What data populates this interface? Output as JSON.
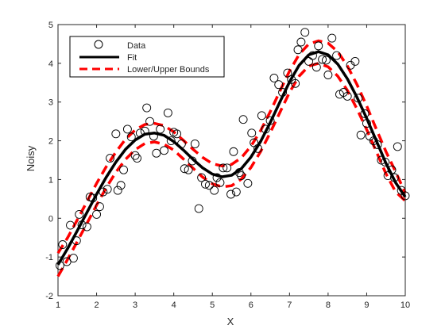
{
  "chart_data": {
    "type": "scatter",
    "xlabel": "X",
    "ylabel": "Noisy",
    "xlim": [
      1,
      10
    ],
    "ylim": [
      -2,
      5
    ],
    "xticks": [
      "1",
      "2",
      "3",
      "4",
      "5",
      "6",
      "7",
      "8",
      "9",
      "10"
    ],
    "yticks": [
      "-2",
      "-1",
      "0",
      "1",
      "2",
      "3",
      "4",
      "5"
    ],
    "grid": false,
    "legend_position": "top-left",
    "legend": [
      "Data",
      "Fit",
      "Lower/Upper Bounds"
    ],
    "colors": {
      "data": "#000000",
      "fit": "#000000",
      "bounds": "#ff0000"
    },
    "series": [
      {
        "name": "Data",
        "kind": "markers",
        "x": [
          1.05,
          1.12,
          1.23,
          1.32,
          1.4,
          1.48,
          1.55,
          1.62,
          1.75,
          1.83,
          1.9,
          2.0,
          2.08,
          2.17,
          2.28,
          2.35,
          2.5,
          2.55,
          2.63,
          2.7,
          2.8,
          2.9,
          3.0,
          3.05,
          3.13,
          3.25,
          3.3,
          3.38,
          3.48,
          3.55,
          3.65,
          3.75,
          3.85,
          3.93,
          4.0,
          4.08,
          4.2,
          4.28,
          4.38,
          4.48,
          4.55,
          4.65,
          4.72,
          4.82,
          4.92,
          5.05,
          5.12,
          5.2,
          5.28,
          5.38,
          5.48,
          5.55,
          5.62,
          5.7,
          5.75,
          5.8,
          5.92,
          6.02,
          6.08,
          6.18,
          6.28,
          6.38,
          6.5,
          6.6,
          6.72,
          6.82,
          6.95,
          7.05,
          7.15,
          7.22,
          7.3,
          7.4,
          7.5,
          7.6,
          7.7,
          7.75,
          7.85,
          7.95,
          8.0,
          8.1,
          8.22,
          8.3,
          8.4,
          8.5,
          8.58,
          8.7,
          8.78,
          8.85,
          8.95,
          9.0,
          9.08,
          9.18,
          9.28,
          9.38,
          9.48,
          9.55,
          9.65,
          9.72,
          9.8,
          9.9,
          10.0
        ],
        "y": [
          -1.22,
          -0.68,
          -1.12,
          -0.18,
          -1.03,
          -0.58,
          0.1,
          -0.17,
          -0.22,
          0.55,
          0.52,
          0.1,
          0.3,
          0.68,
          0.75,
          1.55,
          2.18,
          0.72,
          0.85,
          1.25,
          2.3,
          2.1,
          1.62,
          1.55,
          2.2,
          2.25,
          2.85,
          2.5,
          2.12,
          1.68,
          2.3,
          1.75,
          2.72,
          2.0,
          2.22,
          2.18,
          1.92,
          1.28,
          1.25,
          1.48,
          1.92,
          0.25,
          1.05,
          0.88,
          0.85,
          0.72,
          1.05,
          0.92,
          1.3,
          1.3,
          0.62,
          1.72,
          0.68,
          1.18,
          1.1,
          2.55,
          0.9,
          2.2,
          1.95,
          1.8,
          2.65,
          2.3,
          2.52,
          3.62,
          3.45,
          3.25,
          3.75,
          3.58,
          3.48,
          4.35,
          4.55,
          4.8,
          4.05,
          4.2,
          3.9,
          4.45,
          4.1,
          4.08,
          3.7,
          4.65,
          4.2,
          3.2,
          3.25,
          3.15,
          3.95,
          4.05,
          3.1,
          2.15,
          2.7,
          2.45,
          2.12,
          2.0,
          1.9,
          1.5,
          1.45,
          1.1,
          1.25,
          1.05,
          1.85,
          0.72,
          0.58
        ]
      },
      {
        "name": "Fit",
        "kind": "line",
        "x": [
          1.0,
          1.25,
          1.5,
          1.75,
          2.0,
          2.25,
          2.5,
          2.75,
          3.0,
          3.25,
          3.5,
          3.75,
          4.0,
          4.25,
          4.5,
          4.75,
          5.0,
          5.25,
          5.5,
          5.75,
          6.0,
          6.25,
          6.5,
          6.75,
          7.0,
          7.25,
          7.5,
          7.75,
          8.0,
          8.25,
          8.5,
          8.75,
          9.0,
          9.25,
          9.5,
          9.75,
          10.0
        ],
        "y": [
          -1.2,
          -0.78,
          -0.32,
          0.15,
          0.62,
          1.06,
          1.45,
          1.78,
          2.02,
          2.17,
          2.2,
          2.14,
          1.98,
          1.76,
          1.52,
          1.3,
          1.14,
          1.07,
          1.11,
          1.28,
          1.58,
          1.98,
          2.47,
          3.0,
          3.52,
          3.95,
          4.22,
          4.3,
          4.22,
          3.98,
          3.6,
          3.12,
          2.58,
          2.0,
          1.42,
          0.92,
          0.55
        ]
      },
      {
        "name": "Lower Bound",
        "kind": "dashed-line",
        "x": [
          1.0,
          1.25,
          1.5,
          1.75,
          2.0,
          2.25,
          2.5,
          2.75,
          3.0,
          3.25,
          3.5,
          3.75,
          4.0,
          4.25,
          4.5,
          4.75,
          5.0,
          5.25,
          5.5,
          5.75,
          6.0,
          6.25,
          6.5,
          6.75,
          7.0,
          7.25,
          7.5,
          7.75,
          8.0,
          8.25,
          8.5,
          8.75,
          9.0,
          9.25,
          9.5,
          9.75,
          10.0
        ],
        "y": [
          -1.5,
          -1.06,
          -0.6,
          -0.13,
          0.34,
          0.79,
          1.19,
          1.52,
          1.77,
          1.93,
          1.97,
          1.91,
          1.76,
          1.53,
          1.29,
          1.06,
          0.89,
          0.81,
          0.84,
          1.01,
          1.31,
          1.72,
          2.21,
          2.73,
          3.25,
          3.67,
          3.93,
          4.0,
          3.91,
          3.67,
          3.3,
          2.82,
          2.29,
          1.72,
          1.15,
          0.68,
          0.45
        ]
      },
      {
        "name": "Upper Bound",
        "kind": "dashed-line",
        "x": [
          1.0,
          1.25,
          1.5,
          1.75,
          2.0,
          2.25,
          2.5,
          2.75,
          3.0,
          3.25,
          3.5,
          3.75,
          4.0,
          4.25,
          4.5,
          4.75,
          5.0,
          5.25,
          5.5,
          5.75,
          6.0,
          6.25,
          6.5,
          6.75,
          7.0,
          7.25,
          7.5,
          7.75,
          8.0,
          8.25,
          8.5,
          8.75,
          9.0,
          9.25,
          9.5,
          9.75,
          10.0
        ],
        "y": [
          -0.9,
          -0.5,
          -0.04,
          0.43,
          0.9,
          1.33,
          1.71,
          2.04,
          2.28,
          2.42,
          2.45,
          2.39,
          2.23,
          2.01,
          1.78,
          1.57,
          1.41,
          1.35,
          1.39,
          1.56,
          1.86,
          2.26,
          2.75,
          3.28,
          3.8,
          4.23,
          4.5,
          4.58,
          4.52,
          4.3,
          3.93,
          3.45,
          2.9,
          2.3,
          1.72,
          1.2,
          0.65
        ]
      }
    ]
  }
}
